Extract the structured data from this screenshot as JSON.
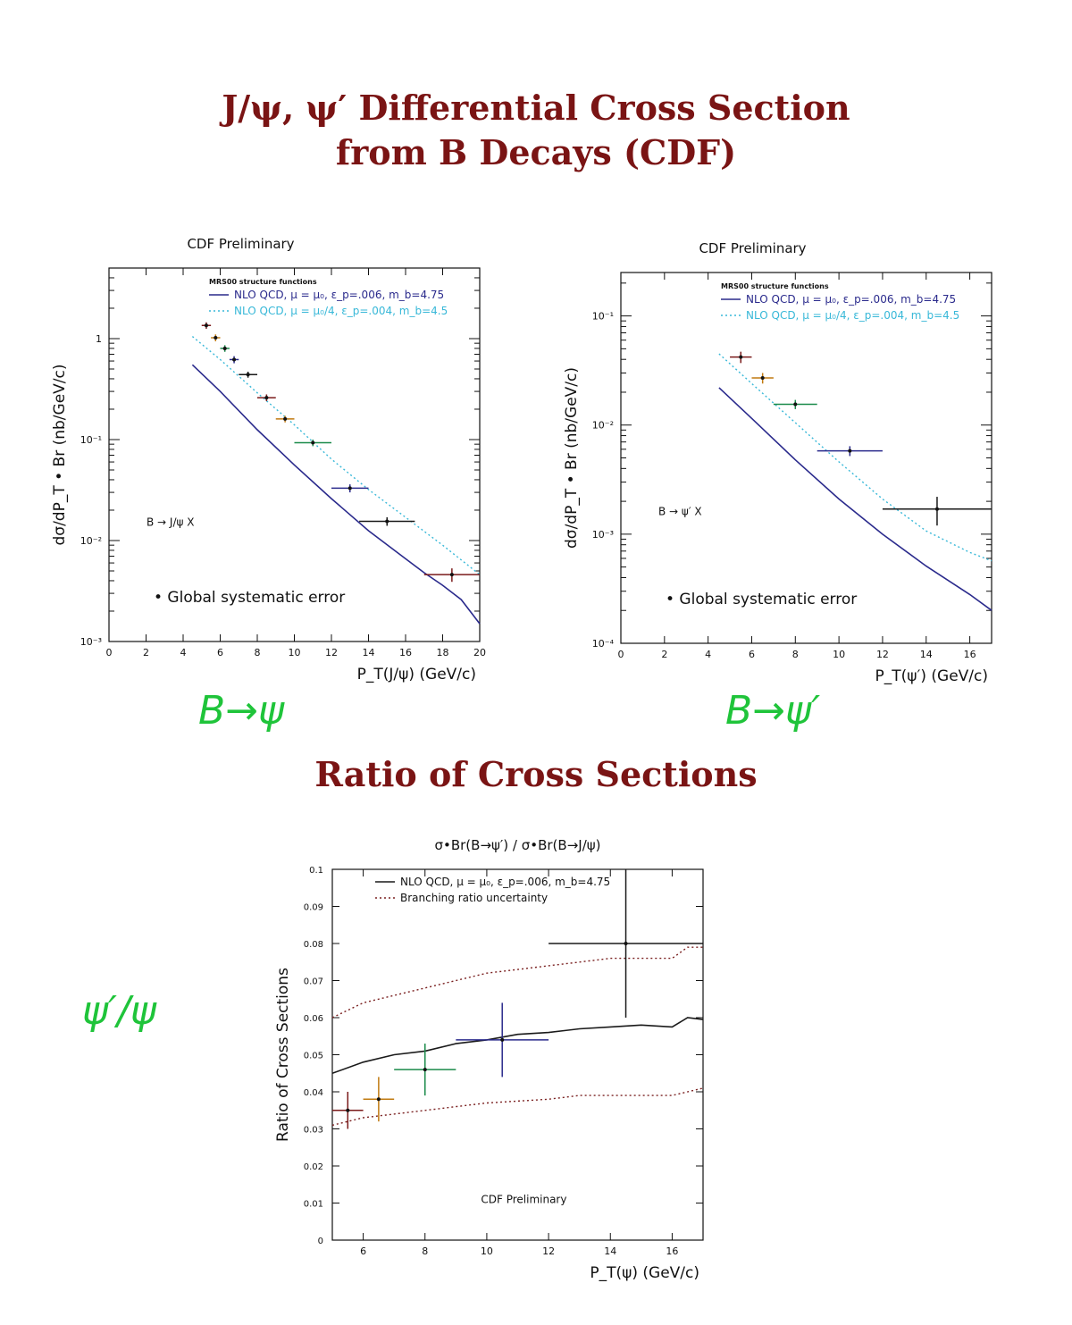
{
  "page": {
    "title_line1": "J/ψ, ψ′ Differential Cross Section",
    "title_line2": "from B Decays (CDF)",
    "ratio_title": "Ratio of Cross Sections",
    "handwritten": [
      "B→ψ",
      "B→ψ′",
      "ψ′/ψ"
    ]
  },
  "colors": {
    "title": "#7a1414",
    "nlo": "#2a2a8c",
    "nlo_alt": "#38b8d8",
    "handwriting": "#1fc43a",
    "ratio_curve": "#1a1a1a",
    "ratio_band": "#7a2020"
  },
  "chart_data": [
    {
      "type": "scatter",
      "title": "CDF Preliminary",
      "xlabel": "P_T(J/ψ) (GeV/c)",
      "ylabel": "dσ/dP_T • Br (nb/GeV/c)",
      "xlim": [
        0,
        20
      ],
      "ylim": [
        0.001,
        5
      ],
      "yscale": "log",
      "xticks": [
        "0",
        "2",
        "4",
        "6",
        "8",
        "10",
        "12",
        "14",
        "16",
        "18",
        "20"
      ],
      "yticks": [
        {
          "v": 1,
          "label": "1"
        },
        {
          "v": 0.1,
          "label": "10⁻¹"
        },
        {
          "v": 0.01,
          "label": "10⁻²"
        },
        {
          "v": 0.001,
          "label": "10⁻³"
        }
      ],
      "legend_header": "MRS00 structure functions",
      "legend": [
        "NLO QCD, μ = μ₀, ε_p=.006, m_b=4.75",
        "NLO QCD, μ = μ₀/4, ε_p=.004, m_b=4.5"
      ],
      "annotation": "B → J/ψ X",
      "note": "• Global systematic error",
      "points": [
        {
          "x": 5.25,
          "y": 1.35,
          "xerr": 0.25,
          "yerr": 0.1
        },
        {
          "x": 5.75,
          "y": 1.02,
          "xerr": 0.25,
          "yerr": 0.08
        },
        {
          "x": 6.25,
          "y": 0.8,
          "xerr": 0.25,
          "yerr": 0.06
        },
        {
          "x": 6.75,
          "y": 0.62,
          "xerr": 0.25,
          "yerr": 0.05
        },
        {
          "x": 7.5,
          "y": 0.44,
          "xerr": 0.5,
          "yerr": 0.03
        },
        {
          "x": 8.5,
          "y": 0.26,
          "xerr": 0.5,
          "yerr": 0.02
        },
        {
          "x": 9.5,
          "y": 0.16,
          "xerr": 0.5,
          "yerr": 0.012
        },
        {
          "x": 11.0,
          "y": 0.093,
          "xerr": 1.0,
          "yerr": 0.007
        },
        {
          "x": 13.0,
          "y": 0.033,
          "xerr": 1.0,
          "yerr": 0.003
        },
        {
          "x": 15.0,
          "y": 0.0155,
          "xerr": 1.5,
          "yerr": 0.0015
        },
        {
          "x": 18.5,
          "y": 0.0046,
          "xerr": 1.5,
          "yerr": 0.0007
        }
      ],
      "series": [
        {
          "name": "NLO QCD, μ = μ₀, ε_p=.006, m_b=4.75",
          "style": "solid",
          "x": [
            4.5,
            6,
            8,
            10,
            12,
            14,
            16,
            17,
            18,
            19,
            20
          ],
          "y": [
            0.55,
            0.3,
            0.125,
            0.056,
            0.026,
            0.0125,
            0.0066,
            0.0048,
            0.0036,
            0.0026,
            0.0015
          ]
        },
        {
          "name": "NLO QCD, μ = μ₀/4, ε_p=.004, m_b=4.5",
          "style": "dotted",
          "x": [
            4.5,
            6,
            8,
            10,
            12,
            14,
            16,
            18,
            20
          ],
          "y": [
            1.05,
            0.62,
            0.29,
            0.14,
            0.064,
            0.032,
            0.017,
            0.009,
            0.0046
          ]
        }
      ]
    },
    {
      "type": "scatter",
      "title": "CDF Preliminary",
      "xlabel": "P_T(ψ′) (GeV/c)",
      "ylabel": "dσ/dP_T • Br (nb/GeV/c)",
      "xlim": [
        0,
        17
      ],
      "ylim": [
        0.0001,
        0.25
      ],
      "yscale": "log",
      "xticks": [
        "0",
        "2",
        "4",
        "6",
        "8",
        "10",
        "12",
        "14",
        "16"
      ],
      "yticks": [
        {
          "v": 0.1,
          "label": "10⁻¹"
        },
        {
          "v": 0.01,
          "label": "10⁻²"
        },
        {
          "v": 0.001,
          "label": "10⁻³"
        },
        {
          "v": 0.0001,
          "label": "10⁻⁴"
        }
      ],
      "legend_header": "MRS00 structure functions",
      "legend": [
        "NLO QCD, μ = μ₀, ε_p=.006, m_b=4.75",
        "NLO QCD, μ = μ₀/4, ε_p=.004, m_b=4.5"
      ],
      "annotation": "B → ψ′ X",
      "note": "• Global systematic error",
      "points": [
        {
          "x": 5.5,
          "y": 0.042,
          "xerr": 0.5,
          "yerr": 0.005
        },
        {
          "x": 6.5,
          "y": 0.027,
          "xerr": 0.5,
          "yerr": 0.003
        },
        {
          "x": 8.0,
          "y": 0.0155,
          "xerr": 1.0,
          "yerr": 0.0015
        },
        {
          "x": 10.5,
          "y": 0.0058,
          "xerr": 1.5,
          "yerr": 0.0006
        },
        {
          "x": 14.5,
          "y": 0.0017,
          "xerr": 2.5,
          "yerr": 0.0005
        }
      ],
      "series": [
        {
          "name": "NLO QCD, μ = μ₀, ε_p=.006, m_b=4.75",
          "style": "solid",
          "x": [
            4.5,
            6,
            8,
            10,
            12,
            14,
            16,
            17
          ],
          "y": [
            0.022,
            0.0115,
            0.0048,
            0.0021,
            0.001,
            0.00051,
            0.00028,
            0.0002
          ]
        },
        {
          "name": "NLO QCD, μ = μ₀/4, ε_p=.004, m_b=4.5",
          "style": "dotted",
          "x": [
            4.5,
            6,
            8,
            10,
            12,
            14,
            16,
            17
          ],
          "y": [
            0.045,
            0.024,
            0.0105,
            0.0046,
            0.0021,
            0.00107,
            0.00068,
            0.00057
          ]
        }
      ]
    },
    {
      "type": "scatter",
      "title": "σ•Br(B→ψ′) / σ•Br(B→J/ψ)",
      "xlabel": "P_T(ψ) (GeV/c)",
      "ylabel": "Ratio of Cross Sections",
      "xlim": [
        5,
        17
      ],
      "ylim": [
        0,
        0.1
      ],
      "xticks": [
        "6",
        "8",
        "10",
        "12",
        "14",
        "16"
      ],
      "yticks": [
        "0",
        "0.01",
        "0.02",
        "0.03",
        "0.04",
        "0.05",
        "0.06",
        "0.07",
        "0.08",
        "0.09",
        "0.1"
      ],
      "legend": [
        "NLO QCD, μ = μ₀, ε_p=.006, m_b=4.75",
        "Branching ratio uncertainty"
      ],
      "annotation": "CDF Preliminary",
      "points": [
        {
          "x": 5.5,
          "y": 0.035,
          "xerr": 0.5,
          "yerr": 0.005
        },
        {
          "x": 6.5,
          "y": 0.038,
          "xerr": 0.5,
          "yerr": 0.006
        },
        {
          "x": 8.0,
          "y": 0.046,
          "xerr": 1.0,
          "yerr": 0.007
        },
        {
          "x": 10.5,
          "y": 0.054,
          "xerr": 1.5,
          "yerr": 0.01
        },
        {
          "x": 14.5,
          "y": 0.08,
          "xerr": 2.5,
          "yerr": 0.02
        }
      ],
      "series": [
        {
          "name": "NLO QCD, μ = μ₀, ε_p=.006, m_b=4.75",
          "style": "solid",
          "x": [
            5,
            6,
            7,
            8,
            9,
            10,
            11,
            12,
            13,
            14,
            15,
            16,
            16.5,
            17
          ],
          "y": [
            0.045,
            0.048,
            0.05,
            0.051,
            0.053,
            0.054,
            0.0555,
            0.056,
            0.057,
            0.0575,
            0.058,
            0.0575,
            0.06,
            0.0595
          ]
        },
        {
          "name": "Branching ratio uncertainty",
          "style": "dotted",
          "x": [
            5,
            6,
            7,
            8,
            9,
            10,
            11,
            12,
            13,
            14,
            15,
            16,
            16.5,
            17
          ],
          "y": [
            0.06,
            0.064,
            0.066,
            0.068,
            0.07,
            0.072,
            0.073,
            0.074,
            0.075,
            0.076,
            0.076,
            0.076,
            0.079,
            0.079
          ]
        },
        {
          "name": "",
          "style": "dotted",
          "x": [
            5,
            6,
            7,
            8,
            9,
            10,
            11,
            12,
            13,
            14,
            15,
            16,
            17
          ],
          "y": [
            0.031,
            0.033,
            0.034,
            0.035,
            0.036,
            0.037,
            0.0375,
            0.038,
            0.039,
            0.039,
            0.039,
            0.039,
            0.041
          ]
        }
      ]
    }
  ]
}
